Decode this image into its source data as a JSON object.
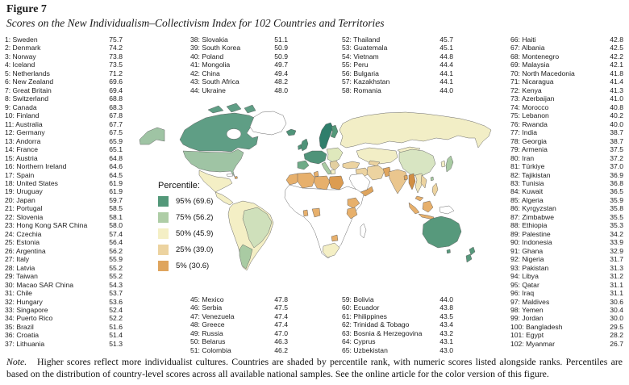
{
  "figure": {
    "label": "Figure 7",
    "title": "Scores on the New Individualism–Collectivism Index for 102 Countries and Territories"
  },
  "legend": {
    "title": "Percentile:",
    "entries": [
      {
        "label": "95% (69.6)",
        "color": "#539879"
      },
      {
        "label": "75% (56.2)",
        "color": "#aecda6"
      },
      {
        "label": "50% (45.9)",
        "color": "#f4efc5"
      },
      {
        "label": "25% (39.0)",
        "color": "#ecd3a0"
      },
      {
        "label": "5% (30.6)",
        "color": "#dfa55e"
      }
    ]
  },
  "note": {
    "label": "Note.",
    "text": "Higher scores reflect more individualist cultures. Countries are shaded by percentile rank, with numeric scores listed alongside ranks. Percentiles are based on the distribution of country-level scores across all available national samples. See the online article for the color version of this figure."
  },
  "chart_data": {
    "type": "choropleth-map",
    "title": "Scores on the New Individualism–Collectivism Index for 102 Countries and Territories",
    "measure": "New Individualism–Collectivism Index score",
    "shading": "percentile rank",
    "percentile_bands": [
      {
        "percentile": "95%",
        "score": 69.6,
        "color": "#539879"
      },
      {
        "percentile": "75%",
        "score": 56.2,
        "color": "#aecda6"
      },
      {
        "percentile": "50%",
        "score": 45.9,
        "color": "#f4efc5"
      },
      {
        "percentile": "25%",
        "score": 39.0,
        "color": "#ecd3a0"
      },
      {
        "percentile": "5%",
        "score": 30.6,
        "color": "#dfa55e"
      }
    ],
    "rankings": [
      {
        "rank": 1,
        "country": "Sweden",
        "score": 75.7
      },
      {
        "rank": 2,
        "country": "Denmark",
        "score": 74.2
      },
      {
        "rank": 3,
        "country": "Norway",
        "score": 73.8
      },
      {
        "rank": 4,
        "country": "Iceland",
        "score": 73.5
      },
      {
        "rank": 5,
        "country": "Netherlands",
        "score": 71.2
      },
      {
        "rank": 6,
        "country": "New Zealand",
        "score": 69.6
      },
      {
        "rank": 7,
        "country": "Great Britain",
        "score": 69.4
      },
      {
        "rank": 8,
        "country": "Switzerland",
        "score": 68.8
      },
      {
        "rank": 9,
        "country": "Canada",
        "score": 68.3
      },
      {
        "rank": 10,
        "country": "Finland",
        "score": 67.8
      },
      {
        "rank": 11,
        "country": "Australia",
        "score": 67.7
      },
      {
        "rank": 12,
        "country": "Germany",
        "score": 67.5
      },
      {
        "rank": 13,
        "country": "Andorra",
        "score": 65.9
      },
      {
        "rank": 14,
        "country": "France",
        "score": 65.1
      },
      {
        "rank": 15,
        "country": "Austria",
        "score": 64.8
      },
      {
        "rank": 16,
        "country": "Northern Ireland",
        "score": 64.6
      },
      {
        "rank": 17,
        "country": "Spain",
        "score": 64.5
      },
      {
        "rank": 18,
        "country": "United States",
        "score": 61.9
      },
      {
        "rank": 19,
        "country": "Uruguay",
        "score": 61.9
      },
      {
        "rank": 20,
        "country": "Japan",
        "score": 59.7
      },
      {
        "rank": 21,
        "country": "Portugal",
        "score": 58.5
      },
      {
        "rank": 22,
        "country": "Slovenia",
        "score": 58.1
      },
      {
        "rank": 23,
        "country": "Hong Kong SAR China",
        "score": 58.0
      },
      {
        "rank": 24,
        "country": "Czechia",
        "score": 57.4
      },
      {
        "rank": 25,
        "country": "Estonia",
        "score": 56.4
      },
      {
        "rank": 26,
        "country": "Argentina",
        "score": 56.2
      },
      {
        "rank": 27,
        "country": "Italy",
        "score": 55.9
      },
      {
        "rank": 28,
        "country": "Latvia",
        "score": 55.2
      },
      {
        "rank": 29,
        "country": "Taiwan",
        "score": 55.2
      },
      {
        "rank": 30,
        "country": "Macao SAR China",
        "score": 54.3
      },
      {
        "rank": 31,
        "country": "Chile",
        "score": 53.7
      },
      {
        "rank": 32,
        "country": "Hungary",
        "score": 53.6
      },
      {
        "rank": 33,
        "country": "Singapore",
        "score": 52.4
      },
      {
        "rank": 34,
        "country": "Puerto Rico",
        "score": 52.2
      },
      {
        "rank": 35,
        "country": "Brazil",
        "score": 51.6
      },
      {
        "rank": 36,
        "country": "Croatia",
        "score": 51.4
      },
      {
        "rank": 37,
        "country": "Lithuania",
        "score": 51.3
      },
      {
        "rank": 38,
        "country": "Slovakia",
        "score": 51.1
      },
      {
        "rank": 39,
        "country": "South Korea",
        "score": 50.9
      },
      {
        "rank": 40,
        "country": "Poland",
        "score": 50.9
      },
      {
        "rank": 41,
        "country": "Mongolia",
        "score": 49.7
      },
      {
        "rank": 42,
        "country": "China",
        "score": 49.4
      },
      {
        "rank": 43,
        "country": "South Africa",
        "score": 48.2
      },
      {
        "rank": 44,
        "country": "Ukraine",
        "score": 48.0
      },
      {
        "rank": 45,
        "country": "Mexico",
        "score": 47.8
      },
      {
        "rank": 46,
        "country": "Serbia",
        "score": 47.5
      },
      {
        "rank": 47,
        "country": "Venezuela",
        "score": 47.4
      },
      {
        "rank": 48,
        "country": "Greece",
        "score": 47.4
      },
      {
        "rank": 49,
        "country": "Russia",
        "score": 47.0
      },
      {
        "rank": 50,
        "country": "Belarus",
        "score": 46.3
      },
      {
        "rank": 51,
        "country": "Colombia",
        "score": 46.2
      },
      {
        "rank": 52,
        "country": "Thailand",
        "score": 45.7
      },
      {
        "rank": 53,
        "country": "Guatemala",
        "score": 45.1
      },
      {
        "rank": 54,
        "country": "Vietnam",
        "score": 44.8
      },
      {
        "rank": 55,
        "country": "Peru",
        "score": 44.4
      },
      {
        "rank": 56,
        "country": "Bulgaria",
        "score": 44.1
      },
      {
        "rank": 57,
        "country": "Kazakhstan",
        "score": 44.1
      },
      {
        "rank": 58,
        "country": "Romania",
        "score": 44.0
      },
      {
        "rank": 59,
        "country": "Bolivia",
        "score": 44.0
      },
      {
        "rank": 60,
        "country": "Ecuador",
        "score": 43.8
      },
      {
        "rank": 61,
        "country": "Philippines",
        "score": 43.5
      },
      {
        "rank": 62,
        "country": "Trinidad & Tobago",
        "score": 43.4
      },
      {
        "rank": 63,
        "country": "Bosnia & Herzegovina",
        "score": 43.2
      },
      {
        "rank": 64,
        "country": "Cyprus",
        "score": 43.1
      },
      {
        "rank": 65,
        "country": "Uzbekistan",
        "score": 43.0
      },
      {
        "rank": 66,
        "country": "Haiti",
        "score": 42.8
      },
      {
        "rank": 67,
        "country": "Albania",
        "score": 42.5
      },
      {
        "rank": 68,
        "country": "Montenegro",
        "score": 42.2
      },
      {
        "rank": 69,
        "country": "Malaysia",
        "score": 42.1
      },
      {
        "rank": 70,
        "country": "North Macedonia",
        "score": 41.8
      },
      {
        "rank": 71,
        "country": "Nicaragua",
        "score": 41.4
      },
      {
        "rank": 72,
        "country": "Kenya",
        "score": 41.3
      },
      {
        "rank": 73,
        "country": "Azerbaijan",
        "score": 41.0
      },
      {
        "rank": 74,
        "country": "Morocco",
        "score": 40.8
      },
      {
        "rank": 75,
        "country": "Lebanon",
        "score": 40.2
      },
      {
        "rank": 76,
        "country": "Rwanda",
        "score": 40.0
      },
      {
        "rank": 77,
        "country": "India",
        "score": 38.7
      },
      {
        "rank": 78,
        "country": "Georgia",
        "score": 38.7
      },
      {
        "rank": 79,
        "country": "Armenia",
        "score": 37.5
      },
      {
        "rank": 80,
        "country": "Iran",
        "score": 37.2
      },
      {
        "rank": 81,
        "country": "Türkiye",
        "score": 37.0
      },
      {
        "rank": 82,
        "country": "Tajikistan",
        "score": 36.9
      },
      {
        "rank": 83,
        "country": "Tunisia",
        "score": 36.8
      },
      {
        "rank": 84,
        "country": "Kuwait",
        "score": 36.5
      },
      {
        "rank": 85,
        "country": "Algeria",
        "score": 35.9
      },
      {
        "rank": 86,
        "country": "Kyrgyzstan",
        "score": 35.8
      },
      {
        "rank": 87,
        "country": "Zimbabwe",
        "score": 35.5
      },
      {
        "rank": 88,
        "country": "Ethiopia",
        "score": 35.3
      },
      {
        "rank": 89,
        "country": "Palestine",
        "score": 34.2
      },
      {
        "rank": 90,
        "country": "Indonesia",
        "score": 33.9
      },
      {
        "rank": 91,
        "country": "Ghana",
        "score": 32.9
      },
      {
        "rank": 92,
        "country": "Nigeria",
        "score": 31.7
      },
      {
        "rank": 93,
        "country": "Pakistan",
        "score": 31.3
      },
      {
        "rank": 94,
        "country": "Libya",
        "score": 31.2
      },
      {
        "rank": 95,
        "country": "Qatar",
        "score": 31.1
      },
      {
        "rank": 96,
        "country": "Iraq",
        "score": 31.1
      },
      {
        "rank": 97,
        "country": "Maldives",
        "score": 30.6
      },
      {
        "rank": 98,
        "country": "Yemen",
        "score": 30.4
      },
      {
        "rank": 99,
        "country": "Jordan",
        "score": 30.0
      },
      {
        "rank": 100,
        "country": "Bangladesh",
        "score": 29.5
      },
      {
        "rank": 101,
        "country": "Egypt",
        "score": 28.2
      },
      {
        "rank": 102,
        "country": "Myanmar",
        "score": 26.7
      }
    ]
  }
}
